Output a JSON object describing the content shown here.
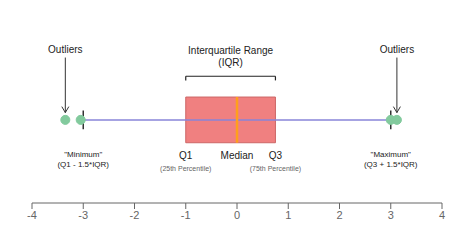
{
  "chart_data": {
    "type": "box",
    "xlim": [
      -4,
      4
    ],
    "xticks": [
      -4,
      -3,
      -2,
      -1,
      0,
      1,
      2,
      3,
      4
    ],
    "q1": -1,
    "median": 0,
    "q3": 0.75,
    "whisker_low": -3,
    "whisker_high": 3,
    "outliers": [
      -3.35,
      -3.05,
      3.0,
      3.12
    ],
    "color": "#f08080",
    "annotations": {
      "iqr": "Interquartile Range\n(IQR)",
      "q1": "Q1",
      "q1_sub": "(25th Percentile)",
      "median": "Median",
      "q3": "Q3",
      "q3_sub": "(75th Percentile)",
      "minimum": "\"Minimum\"\n(Q1 - 1.5*IQR)",
      "maximum": "\"Maximum\"\n(Q3 + 1.5*IQR)",
      "outliers": "Outliers"
    }
  }
}
